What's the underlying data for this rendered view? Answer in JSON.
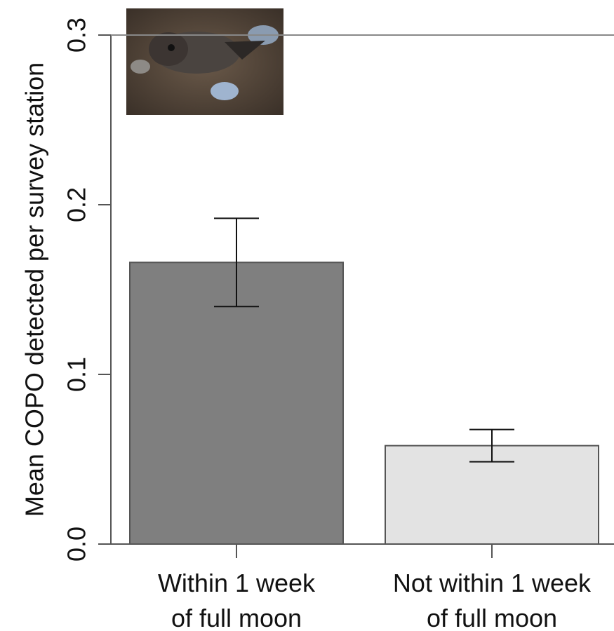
{
  "chart_data": {
    "type": "bar",
    "ylabel": "Mean COPO detected per survey station",
    "categories": [
      "Within 1 week\nof full moon",
      "Not within 1 week\nof full moon"
    ],
    "values": [
      0.166,
      0.058
    ],
    "errors": [
      0.026,
      0.0095
    ],
    "colors": [
      "#7f7f7f",
      "#e3e3e3"
    ],
    "ylim": [
      0,
      0.3
    ],
    "yticks": [
      {
        "value": 0,
        "label": "0.0"
      },
      0.1,
      0.2,
      0.3
    ]
  }
}
